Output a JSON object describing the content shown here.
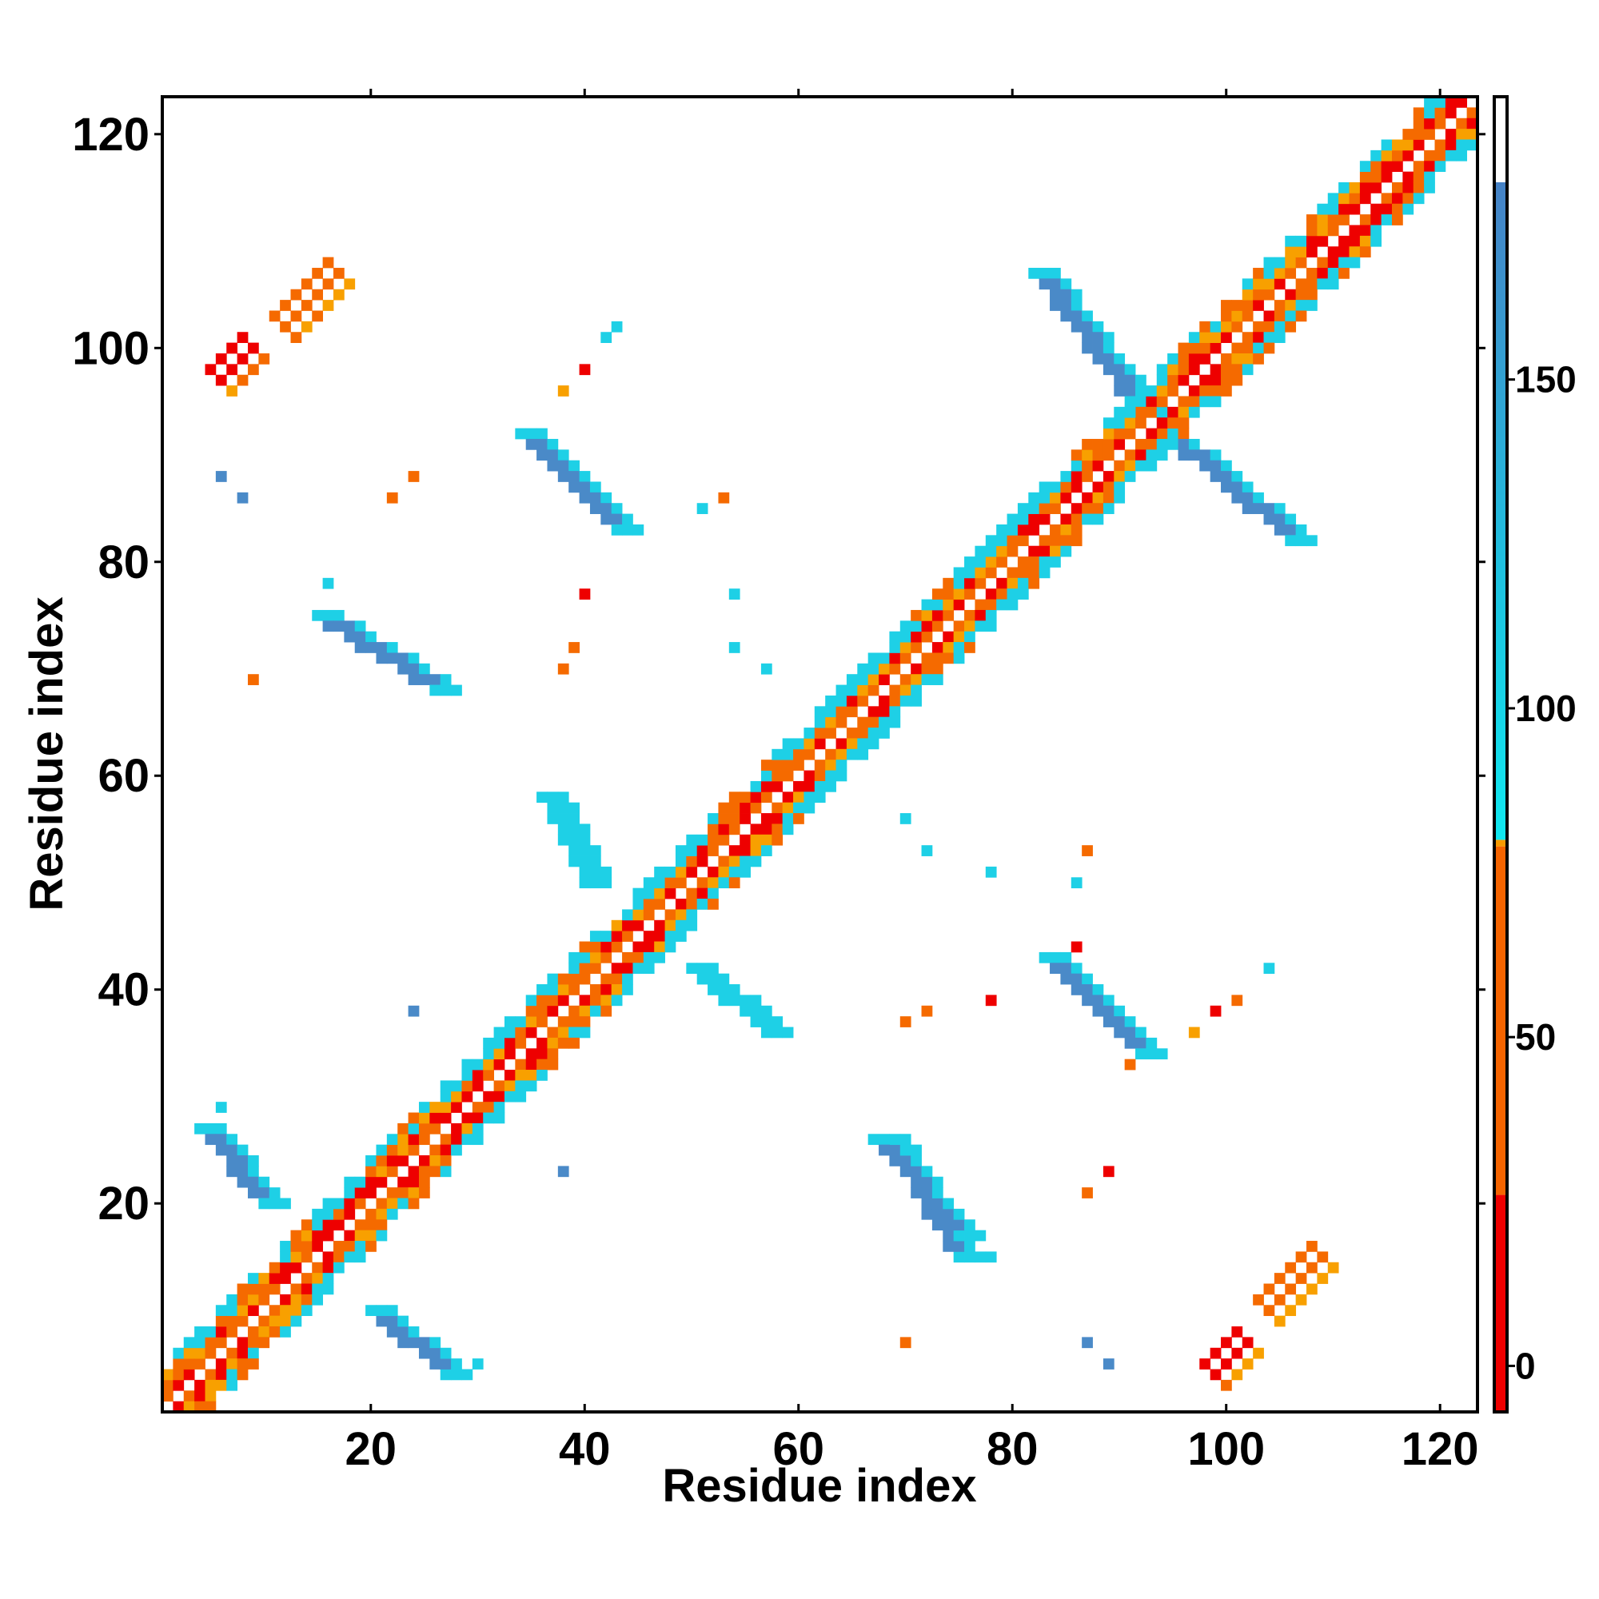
{
  "chart_data": {
    "type": "heatmap",
    "title": "",
    "xlabel": "Residue index",
    "ylabel": "Residue index",
    "xlim": [
      1,
      123
    ],
    "ylim": [
      1,
      123
    ],
    "xticks": [
      20,
      40,
      60,
      80,
      100,
      120
    ],
    "yticks": [
      20,
      40,
      60,
      80,
      100,
      120
    ],
    "colorbar": {
      "ticks": [
        0,
        50,
        100,
        150
      ],
      "range": [
        -7,
        193
      ],
      "bands": [
        {
          "from": -7,
          "to": 26,
          "color": "#ee0000"
        },
        {
          "from": 26,
          "to": 79,
          "color": "#f56400"
        },
        {
          "from": 79,
          "to": 80,
          "color": "#f89a00"
        },
        {
          "from": 80,
          "to": 180,
          "color": "#1ecfe0"
        },
        {
          "from": 180,
          "to": 193,
          "color": "#ffffff"
        }
      ],
      "blue_gradient_top": "#4682c6"
    },
    "palette": {
      "red": "#ee0000",
      "orange": "#f56a00",
      "amber": "#f8a000",
      "cyan": "#1ed0e6",
      "steel": "#4a8ac8"
    },
    "diagonal_band": true,
    "regions": [
      {
        "kind": "anti",
        "from": [
          15,
          75
        ],
        "to": [
          26,
          68
        ],
        "color": "steel"
      },
      {
        "kind": "anti",
        "from": [
          75,
          15
        ],
        "to": [
          68,
          26
        ],
        "color": "steel"
      },
      {
        "kind": "anti",
        "from": [
          4,
          27
        ],
        "to": [
          10,
          20
        ],
        "color": "steel"
      },
      {
        "kind": "anti",
        "from": [
          27,
          4
        ],
        "to": [
          20,
          10
        ],
        "color": "steel"
      },
      {
        "kind": "anti",
        "from": [
          20,
          10
        ],
        "to": [
          27,
          4
        ],
        "color": "steel"
      },
      {
        "kind": "anti",
        "from": [
          67,
          26
        ],
        "to": [
          75,
          17
        ],
        "color": "steel"
      },
      {
        "kind": "anti",
        "from": [
          34,
          92
        ],
        "to": [
          43,
          83
        ],
        "color": "steel"
      },
      {
        "kind": "anti",
        "from": [
          83,
          43
        ],
        "to": [
          92,
          34
        ],
        "color": "steel"
      },
      {
        "kind": "anti",
        "from": [
          36,
          58
        ],
        "to": [
          40,
          50
        ],
        "color": "cyan"
      },
      {
        "kind": "anti",
        "from": [
          50,
          42
        ],
        "to": [
          57,
          36
        ],
        "color": "cyan"
      },
      {
        "kind": "anti",
        "from": [
          82,
          107
        ],
        "to": [
          92,
          94
        ],
        "color": "steel"
      },
      {
        "kind": "anti",
        "from": [
          94,
          92
        ],
        "to": [
          106,
          82
        ],
        "color": "steel"
      },
      {
        "kind": "par",
        "from": [
          11,
          103
        ],
        "to": [
          16,
          108
        ],
        "color": "orange"
      },
      {
        "kind": "par",
        "from": [
          5,
          98
        ],
        "to": [
          8,
          101
        ],
        "color": "red"
      },
      {
        "kind": "par",
        "from": [
          103,
          11
        ],
        "to": [
          108,
          16
        ],
        "color": "orange"
      },
      {
        "kind": "par",
        "from": [
          98,
          5
        ],
        "to": [
          101,
          8
        ],
        "color": "red"
      }
    ],
    "points": [
      {
        "x": 6,
        "y": 88,
        "c": "steel"
      },
      {
        "x": 8,
        "y": 86,
        "c": "steel"
      },
      {
        "x": 22,
        "y": 86,
        "c": "orange"
      },
      {
        "x": 24,
        "y": 88,
        "c": "orange"
      },
      {
        "x": 9,
        "y": 69,
        "c": "orange"
      },
      {
        "x": 16,
        "y": 78,
        "c": "cyan"
      },
      {
        "x": 38,
        "y": 96,
        "c": "amber"
      },
      {
        "x": 40,
        "y": 98,
        "c": "red"
      },
      {
        "x": 42,
        "y": 101,
        "c": "cyan"
      },
      {
        "x": 43,
        "y": 102,
        "c": "cyan"
      },
      {
        "x": 40,
        "y": 77,
        "c": "red"
      },
      {
        "x": 39,
        "y": 72,
        "c": "orange"
      },
      {
        "x": 38,
        "y": 70,
        "c": "orange"
      },
      {
        "x": 51,
        "y": 85,
        "c": "cyan"
      },
      {
        "x": 53,
        "y": 86,
        "c": "orange"
      },
      {
        "x": 54,
        "y": 77,
        "c": "cyan"
      },
      {
        "x": 54,
        "y": 72,
        "c": "cyan"
      },
      {
        "x": 57,
        "y": 70,
        "c": "cyan"
      },
      {
        "x": 24,
        "y": 38,
        "c": "steel"
      },
      {
        "x": 6,
        "y": 29,
        "c": "cyan"
      },
      {
        "x": 38,
        "y": 23,
        "c": "steel"
      },
      {
        "x": 30,
        "y": 5,
        "c": "cyan"
      },
      {
        "x": 70,
        "y": 56,
        "c": "cyan"
      },
      {
        "x": 72,
        "y": 53,
        "c": "cyan"
      },
      {
        "x": 78,
        "y": 51,
        "c": "cyan"
      },
      {
        "x": 87,
        "y": 53,
        "c": "orange"
      },
      {
        "x": 86,
        "y": 50,
        "c": "cyan"
      },
      {
        "x": 72,
        "y": 38,
        "c": "orange"
      },
      {
        "x": 70,
        "y": 37,
        "c": "orange"
      },
      {
        "x": 78,
        "y": 39,
        "c": "red"
      },
      {
        "x": 86,
        "y": 44,
        "c": "red"
      },
      {
        "x": 97,
        "y": 36,
        "c": "amber"
      },
      {
        "x": 99,
        "y": 38,
        "c": "red"
      },
      {
        "x": 101,
        "y": 39,
        "c": "orange"
      },
      {
        "x": 104,
        "y": 42,
        "c": "cyan"
      },
      {
        "x": 89,
        "y": 23,
        "c": "red"
      },
      {
        "x": 87,
        "y": 21,
        "c": "orange"
      },
      {
        "x": 78,
        "y": 15,
        "c": "cyan"
      },
      {
        "x": 70,
        "y": 7,
        "c": "orange"
      },
      {
        "x": 87,
        "y": 7,
        "c": "steel"
      },
      {
        "x": 89,
        "y": 5,
        "c": "steel"
      },
      {
        "x": 91,
        "y": 33,
        "c": "orange"
      }
    ]
  }
}
